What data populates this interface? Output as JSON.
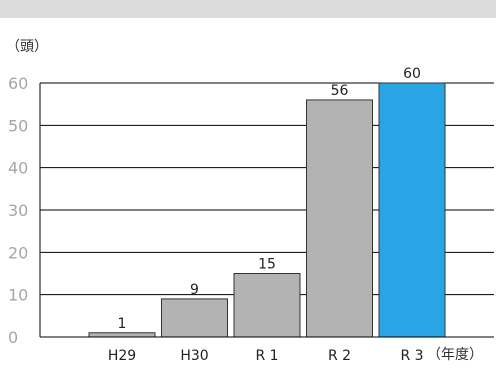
{
  "chart_data": {
    "type": "bar",
    "categories": [
      "H29",
      "H30",
      "R 1",
      "R 2",
      "R 3"
    ],
    "values": [
      1,
      9,
      15,
      56,
      60
    ],
    "data_labels": [
      "1",
      "9",
      "15",
      "56",
      "60"
    ],
    "y_unit_label": "（頭）",
    "x_unit_label": "（年度）",
    "ylim": [
      0,
      60
    ],
    "yticks": [
      0,
      10,
      20,
      30,
      40,
      50,
      60
    ],
    "grid": true,
    "colors": {
      "default_bar": "#b3b3b3",
      "highlight_bar": "#29a4e4",
      "bar_stroke": "#333333",
      "grid": "#000000",
      "tick_text": "#a6a6a6"
    },
    "highlight_index": 4
  }
}
